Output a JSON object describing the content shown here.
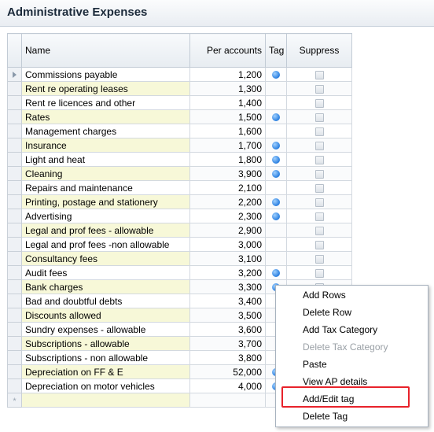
{
  "header": {
    "title": "Administrative Expenses"
  },
  "columns": {
    "name": "Name",
    "per_accounts": "Per accounts",
    "tag": "Tag",
    "suppress": "Suppress"
  },
  "rows": [
    {
      "name": "Commissions payable",
      "amount": "1,200",
      "tag": true
    },
    {
      "name": "Rent re operating leases",
      "amount": "1,300",
      "tag": false
    },
    {
      "name": "Rent re licences and other",
      "amount": "1,400",
      "tag": false
    },
    {
      "name": "Rates",
      "amount": "1,500",
      "tag": true
    },
    {
      "name": "Management charges",
      "amount": "1,600",
      "tag": false
    },
    {
      "name": "Insurance",
      "amount": "1,700",
      "tag": true
    },
    {
      "name": "Light and heat",
      "amount": "1,800",
      "tag": true
    },
    {
      "name": "Cleaning",
      "amount": "3,900",
      "tag": true
    },
    {
      "name": "Repairs and maintenance",
      "amount": "2,100",
      "tag": false
    },
    {
      "name": "Printing, postage and stationery",
      "amount": "2,200",
      "tag": true
    },
    {
      "name": "Advertising",
      "amount": "2,300",
      "tag": true
    },
    {
      "name": "Legal and prof fees - allowable",
      "amount": "2,900",
      "tag": false
    },
    {
      "name": "Legal and prof fees -non allowable",
      "amount": "3,000",
      "tag": false
    },
    {
      "name": "Consultancy fees",
      "amount": "3,100",
      "tag": false
    },
    {
      "name": "Audit fees",
      "amount": "3,200",
      "tag": true
    },
    {
      "name": "Bank charges",
      "amount": "3,300",
      "tag": true
    },
    {
      "name": "Bad and doubtful debts",
      "amount": "3,400",
      "tag": false
    },
    {
      "name": "Discounts allowed",
      "amount": "3,500",
      "tag": false
    },
    {
      "name": "Sundry expenses - allowable",
      "amount": "3,600",
      "tag": false
    },
    {
      "name": "Subscriptions - allowable",
      "amount": "3,700",
      "tag": false
    },
    {
      "name": "Subscriptions - non allowable",
      "amount": "3,800",
      "tag": false
    },
    {
      "name": "Depreciation on FF & E",
      "amount": "52,000",
      "tag": true
    },
    {
      "name": "Depreciation on motor vehicles",
      "amount": "4,000",
      "tag": true
    }
  ],
  "new_row_marker": "*",
  "context_menu": {
    "items": [
      {
        "label": "Add Rows",
        "enabled": true
      },
      {
        "label": "Delete Row",
        "enabled": true
      },
      {
        "label": "Add Tax Category",
        "enabled": true
      },
      {
        "label": "Delete Tax Category",
        "enabled": false
      },
      {
        "label": "Paste",
        "enabled": true
      },
      {
        "label": "View AP details",
        "enabled": true
      },
      {
        "label": "Add/Edit tag",
        "enabled": true
      },
      {
        "label": "Delete Tag",
        "enabled": true
      }
    ],
    "highlighted_item": "Add/Edit tag"
  },
  "colors": {
    "alt_row": "#f7f8d8",
    "highlight_border": "#e8222b",
    "tag_dot": "#2a7fe0"
  }
}
